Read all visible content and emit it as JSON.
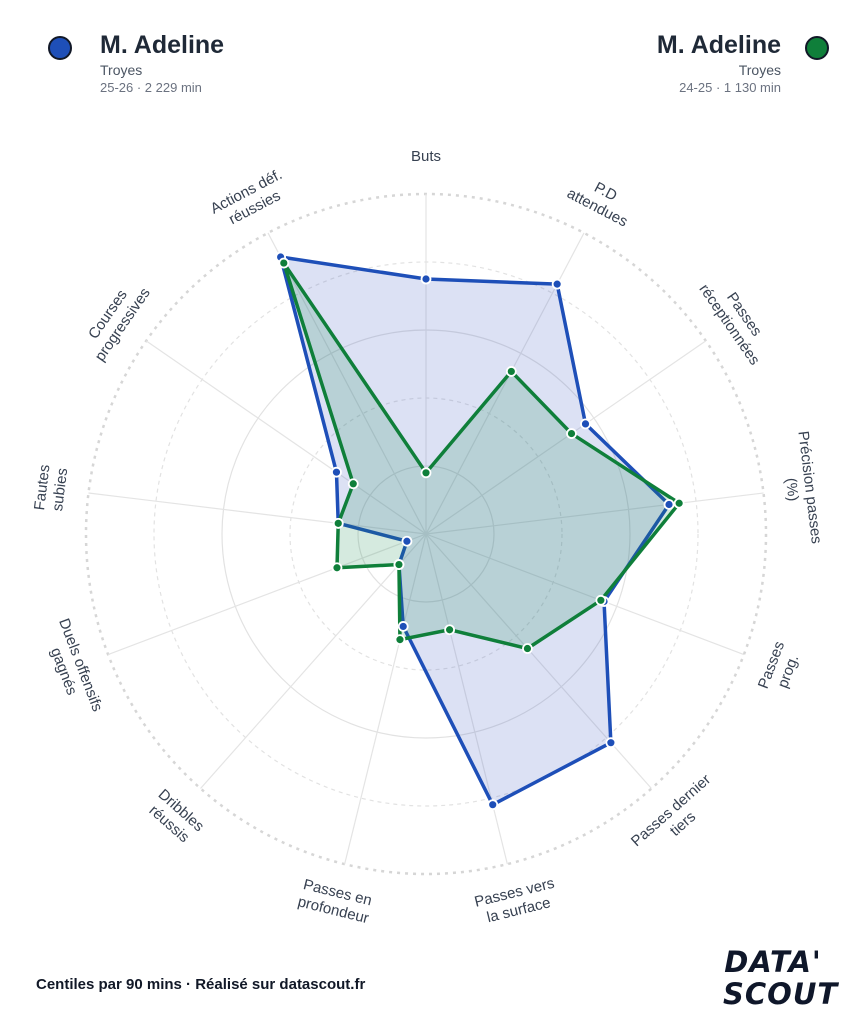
{
  "players": [
    {
      "name": "M. Adeline",
      "team": "Troyes",
      "meta": "25-26 · 2 229 min",
      "color": "#1e4fb8",
      "fill": "rgba(59,91,196,0.18)"
    },
    {
      "name": "M. Adeline",
      "team": "Troyes",
      "meta": "24-25 · 1 130 min",
      "color": "#0f7f3a",
      "fill": "rgba(24,140,80,0.18)"
    }
  ],
  "footer": "Centiles par 90 mins · Réalisé sur datascout.fr",
  "logo": {
    "line1": "DATA'",
    "line2": "SCOUT"
  },
  "chart_data": {
    "type": "radar",
    "scale": [
      0,
      100
    ],
    "axes": [
      [
        "Buts"
      ],
      [
        "P.D",
        "attendues"
      ],
      [
        "Passes",
        "réceptionnées"
      ],
      [
        "Précision passes",
        "(%)"
      ],
      [
        "Passes",
        "prog."
      ],
      [
        "Passes dernier",
        "tiers"
      ],
      [
        "Passes vers",
        "la surface"
      ],
      [
        "Passes en",
        "profondeur"
      ],
      [
        "Dribbles",
        "réussis"
      ],
      [
        "Duels offensifs",
        "gagnés"
      ],
      [
        "Fautes",
        "subies"
      ],
      [
        "Courses",
        "progressives"
      ],
      [
        "Actions déf.",
        "réussies"
      ]
    ],
    "series": [
      {
        "name": "M. Adeline",
        "values": [
          75,
          83,
          57,
          72,
          56,
          82,
          82,
          28,
          12,
          6,
          26,
          32,
          92
        ]
      },
      {
        "name": "M. Adeline",
        "values": [
          18,
          54,
          52,
          75,
          55,
          45,
          29,
          32,
          12,
          28,
          26,
          26,
          90
        ]
      }
    ]
  }
}
